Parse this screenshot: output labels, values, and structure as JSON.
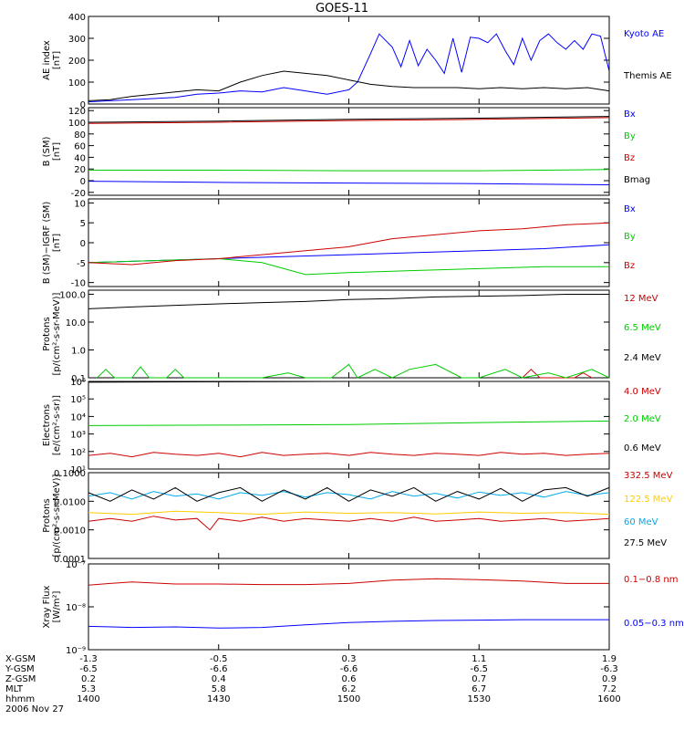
{
  "title": "GOES-11",
  "date_label": "2006 Nov 27",
  "chart_data": [
    {
      "type": "line",
      "ylabel": [
        "AE index",
        "[nT]"
      ],
      "ylim": [
        0,
        400
      ],
      "yticks": [
        "400",
        "300",
        "200",
        "100",
        "0"
      ],
      "ytick_values": [
        400,
        300,
        200,
        100,
        0
      ],
      "scale": "linear",
      "series": [
        {
          "name": "Kyoto AE",
          "color": "#0000ff",
          "x": [
            1400,
            1405,
            1410,
            1415,
            1420,
            1425,
            1430,
            1435,
            1440,
            1445,
            1450,
            1455,
            1500,
            1502,
            1505,
            1507,
            1510,
            1512,
            1514,
            1516,
            1518,
            1520,
            1522,
            1524,
            1526,
            1528,
            1530,
            1532,
            1534,
            1536,
            1538,
            1540,
            1542,
            1544,
            1546,
            1548,
            1550,
            1552,
            1554,
            1556,
            1558,
            1600
          ],
          "y": [
            10,
            15,
            20,
            25,
            30,
            45,
            50,
            60,
            55,
            75,
            60,
            45,
            65,
            100,
            230,
            320,
            260,
            170,
            290,
            175,
            250,
            200,
            140,
            300,
            145,
            305,
            300,
            280,
            320,
            245,
            180,
            300,
            200,
            290,
            320,
            280,
            250,
            290,
            250,
            320,
            310,
            150
          ]
        },
        {
          "name": "Themis AE",
          "color": "#000000",
          "x": [
            1400,
            1405,
            1410,
            1415,
            1420,
            1425,
            1430,
            1435,
            1440,
            1445,
            1450,
            1455,
            1500,
            1505,
            1510,
            1515,
            1520,
            1525,
            1530,
            1535,
            1540,
            1545,
            1550,
            1555,
            1600
          ],
          "y": [
            15,
            20,
            35,
            45,
            55,
            65,
            60,
            100,
            130,
            150,
            140,
            130,
            110,
            90,
            80,
            75,
            75,
            75,
            70,
            75,
            70,
            75,
            70,
            75,
            60
          ]
        }
      ]
    },
    {
      "type": "line",
      "ylabel": [
        "B (SM)",
        "[nT]"
      ],
      "ylim": [
        -25,
        125
      ],
      "yticks": [
        "120",
        "100",
        "80",
        "60",
        "40",
        "20",
        "0",
        "-20"
      ],
      "ytick_values": [
        120,
        100,
        80,
        60,
        40,
        20,
        0,
        -20
      ],
      "scale": "linear",
      "series": [
        {
          "name": "Bx",
          "color": "#0000ff",
          "x": [
            1400,
            1430,
            1500,
            1530,
            1600
          ],
          "y": [
            -1,
            -3,
            -4,
            -5,
            -7
          ]
        },
        {
          "name": "By",
          "color": "#00cc00",
          "x": [
            1400,
            1430,
            1500,
            1530,
            1600
          ],
          "y": [
            18,
            18,
            17,
            17,
            19
          ]
        },
        {
          "name": "Bz",
          "color": "#cc0000",
          "x": [
            1400,
            1430,
            1500,
            1530,
            1600
          ],
          "y": [
            98,
            100,
            103,
            105,
            108
          ]
        },
        {
          "name": "Bmag",
          "color": "#000000",
          "x": [
            1400,
            1430,
            1500,
            1530,
            1600
          ],
          "y": [
            100,
            102,
            105,
            107,
            110
          ]
        }
      ]
    },
    {
      "type": "line",
      "ylabel": [
        "B (SM)−IGRF (SM)",
        "[nT]"
      ],
      "ylim": [
        -11,
        11
      ],
      "yticks": [
        "10",
        "5",
        "0",
        "-5",
        "-10"
      ],
      "ytick_values": [
        10,
        5,
        0,
        -5,
        -10
      ],
      "scale": "linear",
      "series": [
        {
          "name": "Bx",
          "color": "#0000ff",
          "x": [
            1400,
            1415,
            1430,
            1445,
            1500,
            1515,
            1530,
            1545,
            1600
          ],
          "y": [
            -5,
            -4.5,
            -4,
            -3.5,
            -3,
            -2.5,
            -2,
            -1.5,
            -0.5
          ]
        },
        {
          "name": "By",
          "color": "#00cc00",
          "x": [
            1400,
            1415,
            1430,
            1440,
            1450,
            1500,
            1515,
            1530,
            1545,
            1600
          ],
          "y": [
            -5,
            -4.5,
            -4,
            -5,
            -8,
            -7.5,
            -7,
            -6.5,
            -6,
            -6
          ]
        },
        {
          "name": "Bz",
          "color": "#cc0000",
          "x": [
            1400,
            1410,
            1420,
            1430,
            1440,
            1450,
            1500,
            1510,
            1520,
            1530,
            1540,
            1550,
            1600
          ],
          "y": [
            -5,
            -5.5,
            -4.5,
            -4,
            -3,
            -2,
            -1,
            1,
            2,
            3,
            3.5,
            4.5,
            5
          ]
        }
      ]
    },
    {
      "type": "line",
      "ylabel": [
        "Protons",
        "[p/(cm²-s-sr-MeV)]"
      ],
      "ylim": [
        0.1,
        140
      ],
      "yticks": [
        "100.0",
        "10.0",
        "1.0",
        "0.1"
      ],
      "ytick_values": [
        100,
        10,
        1,
        0.1
      ],
      "scale": "log",
      "series": [
        {
          "name": "12 MeV",
          "color": "#cc0000",
          "x": [
            1540,
            1542,
            1544,
            1552,
            1554,
            1556
          ],
          "y": [
            0.1,
            0.2,
            0.1,
            0.1,
            0.15,
            0.1
          ]
        },
        {
          "name": "6.5 MeV",
          "color": "#00cc00",
          "x": [
            1402,
            1404,
            1406,
            1410,
            1412,
            1414,
            1418,
            1420,
            1422,
            1426,
            1430,
            1440,
            1446,
            1450,
            1456,
            1500,
            1502,
            1506,
            1510,
            1514,
            1520,
            1526,
            1530,
            1536,
            1540,
            1546,
            1550,
            1556,
            1600
          ],
          "y": [
            0.1,
            0.2,
            0.1,
            0.1,
            0.25,
            0.1,
            0.1,
            0.2,
            0.1,
            0.1,
            0.1,
            0.1,
            0.15,
            0.1,
            0.1,
            0.3,
            0.1,
            0.2,
            0.1,
            0.2,
            0.3,
            0.1,
            0.1,
            0.2,
            0.1,
            0.15,
            0.1,
            0.2,
            0.1
          ]
        },
        {
          "name": "2.4 MeV",
          "color": "#000000",
          "x": [
            1400,
            1410,
            1420,
            1430,
            1440,
            1450,
            1500,
            1510,
            1520,
            1530,
            1540,
            1550,
            1600
          ],
          "y": [
            30,
            35,
            40,
            45,
            50,
            55,
            65,
            70,
            80,
            85,
            90,
            100,
            100
          ]
        }
      ]
    },
    {
      "type": "line",
      "ylabel": [
        "Electrons",
        "[e/(cm²-s-sr)]"
      ],
      "ylim": [
        10,
        1000000
      ],
      "yticks": [
        "10⁶",
        "10⁵",
        "10⁴",
        "10³",
        "10²",
        "10¹"
      ],
      "ytick_values": [
        1000000,
        100000,
        10000,
        1000,
        100,
        10
      ],
      "scale": "log",
      "series": [
        {
          "name": "4.0 MeV",
          "color": "#cc0000",
          "x": [
            1400,
            1405,
            1410,
            1415,
            1420,
            1425,
            1430,
            1435,
            1440,
            1445,
            1450,
            1455,
            1500,
            1505,
            1510,
            1515,
            1520,
            1525,
            1530,
            1535,
            1540,
            1545,
            1550,
            1555,
            1600
          ],
          "y": [
            60,
            80,
            50,
            90,
            70,
            60,
            80,
            50,
            90,
            60,
            70,
            80,
            60,
            90,
            70,
            60,
            80,
            70,
            60,
            90,
            70,
            80,
            60,
            70,
            80
          ]
        },
        {
          "name": "2.0 MeV",
          "color": "#00cc00",
          "x": [
            1400,
            1430,
            1500,
            1530,
            1600
          ],
          "y": [
            3000,
            3200,
            3500,
            4500,
            5500
          ]
        },
        {
          "name": "0.6 MeV",
          "color": "#000000",
          "x": [
            1400,
            1430,
            1500,
            1530,
            1600
          ],
          "y": [
            900000,
            950000,
            1000000,
            1000000,
            1000000
          ]
        }
      ]
    },
    {
      "type": "line",
      "ylabel": [
        "Protons",
        "[p/(cm²-s-sr-MeV)]"
      ],
      "ylim": [
        0.0001,
        0.1
      ],
      "yticks": [
        "0.1000",
        "0.0100",
        "0.0010",
        "0.0001"
      ],
      "ytick_values": [
        0.1,
        0.01,
        0.001,
        0.0001
      ],
      "scale": "log",
      "series": [
        {
          "name": "332.5 MeV",
          "color": "#cc0000",
          "x": [
            1400,
            1405,
            1410,
            1415,
            1420,
            1425,
            1428,
            1430,
            1435,
            1440,
            1445,
            1450,
            1455,
            1500,
            1505,
            1510,
            1515,
            1520,
            1525,
            1530,
            1535,
            1540,
            1545,
            1550,
            1555,
            1600
          ],
          "y": [
            0.002,
            0.0025,
            0.002,
            0.003,
            0.0022,
            0.0025,
            0.001,
            0.0025,
            0.002,
            0.0028,
            0.002,
            0.0025,
            0.0022,
            0.002,
            0.0025,
            0.002,
            0.0028,
            0.002,
            0.0022,
            0.0025,
            0.002,
            0.0022,
            0.0025,
            0.002,
            0.0022,
            0.0025
          ]
        },
        {
          "name": "122.5 MeV",
          "color": "#ffcc00",
          "x": [
            1400,
            1410,
            1420,
            1430,
            1440,
            1450,
            1500,
            1510,
            1520,
            1530,
            1540,
            1550,
            1600
          ],
          "y": [
            0.004,
            0.0035,
            0.0045,
            0.004,
            0.0035,
            0.0042,
            0.0038,
            0.004,
            0.0036,
            0.0042,
            0.0038,
            0.004,
            0.0035
          ]
        },
        {
          "name": "60 MeV",
          "color": "#00aaee",
          "x": [
            1400,
            1405,
            1410,
            1415,
            1420,
            1425,
            1430,
            1435,
            1440,
            1445,
            1450,
            1455,
            1500,
            1505,
            1510,
            1515,
            1520,
            1525,
            1530,
            1535,
            1540,
            1545,
            1550,
            1555,
            1600
          ],
          "y": [
            0.015,
            0.02,
            0.012,
            0.022,
            0.015,
            0.018,
            0.012,
            0.02,
            0.016,
            0.022,
            0.014,
            0.02,
            0.017,
            0.012,
            0.022,
            0.015,
            0.019,
            0.013,
            0.021,
            0.016,
            0.02,
            0.014,
            0.022,
            0.016,
            0.02
          ]
        },
        {
          "name": "27.5 MeV",
          "color": "#000000",
          "x": [
            1400,
            1405,
            1410,
            1415,
            1420,
            1425,
            1430,
            1435,
            1440,
            1445,
            1450,
            1455,
            1500,
            1505,
            1510,
            1515,
            1520,
            1525,
            1530,
            1535,
            1540,
            1545,
            1550,
            1555,
            1600
          ],
          "y": [
            0.02,
            0.01,
            0.025,
            0.012,
            0.03,
            0.01,
            0.02,
            0.03,
            0.01,
            0.025,
            0.012,
            0.03,
            0.01,
            0.025,
            0.015,
            0.03,
            0.01,
            0.022,
            0.012,
            0.028,
            0.01,
            0.025,
            0.03,
            0.015,
            0.03
          ]
        }
      ]
    },
    {
      "type": "line",
      "ylabel": [
        "Xray Flux",
        "[W/m²]"
      ],
      "ylim": [
        1e-09,
        1e-07
      ],
      "yticks": [
        "10⁻⁷",
        "10⁻⁸",
        "10⁻⁹"
      ],
      "ytick_values": [
        1e-07,
        1e-08,
        1e-09
      ],
      "scale": "log",
      "series": [
        {
          "name": "0.1−0.8 nm",
          "color": "#cc0000",
          "x": [
            1400,
            1405,
            1410,
            1420,
            1430,
            1440,
            1450,
            1500,
            1510,
            1520,
            1530,
            1540,
            1550,
            1600
          ],
          "y": [
            3.2e-08,
            3.5e-08,
            3.8e-08,
            3.4e-08,
            3.4e-08,
            3.3e-08,
            3.3e-08,
            3.5e-08,
            4.2e-08,
            4.5e-08,
            4.3e-08,
            4e-08,
            3.5e-08,
            3.5e-08
          ]
        },
        {
          "name": "0.05−0.3 nm",
          "color": "#0000ff",
          "x": [
            1400,
            1410,
            1420,
            1430,
            1440,
            1450,
            1500,
            1510,
            1520,
            1530,
            1540,
            1550,
            1600
          ],
          "y": [
            3.5e-09,
            3.3e-09,
            3.4e-09,
            3.2e-09,
            3.3e-09,
            3.8e-09,
            4.3e-09,
            4.6e-09,
            4.8e-09,
            4.9e-09,
            5e-09,
            5e-09,
            5e-09
          ]
        }
      ]
    }
  ],
  "footer": {
    "rows": [
      {
        "label": "X-GSM",
        "values": [
          "-1.3",
          "-0.5",
          "0.3",
          "1.1",
          "1.9"
        ]
      },
      {
        "label": "Y-GSM",
        "values": [
          "-6.5",
          "-6.6",
          "-6.6",
          "-6.5",
          "-6.3"
        ]
      },
      {
        "label": "Z-GSM",
        "values": [
          "0.2",
          "0.4",
          "0.6",
          "0.7",
          "0.9"
        ]
      },
      {
        "label": "MLT",
        "values": [
          "5.3",
          "5.8",
          "6.2",
          "6.7",
          "7.2"
        ]
      },
      {
        "label": "hhmm",
        "values": [
          "1400",
          "1430",
          "1500",
          "1530",
          "1600"
        ]
      }
    ]
  }
}
